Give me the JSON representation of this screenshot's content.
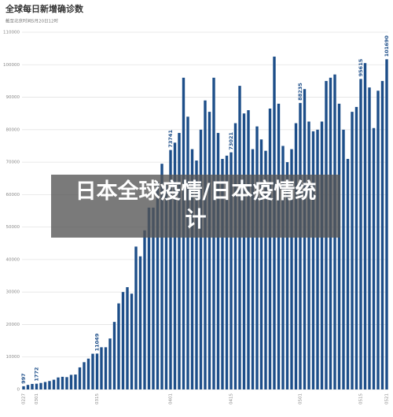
{
  "chart_data": {
    "type": "bar",
    "title": "全球每日新增确诊数",
    "subtitle": "截至北京时间5月20日12时",
    "categories": [
      "0227",
      null,
      null,
      "0301",
      null,
      null,
      null,
      null,
      null,
      null,
      null,
      null,
      null,
      null,
      null,
      null,
      null,
      "0315",
      null,
      null,
      null,
      null,
      null,
      null,
      null,
      null,
      null,
      null,
      null,
      null,
      null,
      null,
      null,
      null,
      "0401",
      null,
      null,
      null,
      null,
      null,
      null,
      null,
      null,
      null,
      null,
      null,
      null,
      null,
      "0415",
      null,
      null,
      null,
      null,
      null,
      null,
      null,
      null,
      null,
      null,
      null,
      null,
      null,
      null,
      null,
      "0501",
      null,
      null,
      null,
      null,
      null,
      null,
      null,
      null,
      null,
      null,
      null,
      null,
      null,
      "0515",
      null,
      null,
      null,
      null,
      null,
      "0521"
    ],
    "values": [
      997,
      1400,
      1700,
      1772,
      2000,
      2300,
      2600,
      3000,
      3700,
      3900,
      3800,
      4500,
      4600,
      6800,
      8400,
      9500,
      11000,
      11049,
      13000,
      13000,
      15700,
      20800,
      26500,
      30000,
      31500,
      29500,
      44000,
      41000,
      49000,
      56000,
      56000,
      64000,
      69500,
      63000,
      73741,
      76000,
      79000,
      96000,
      84000,
      74000,
      70500,
      80000,
      89000,
      85500,
      96000,
      79000,
      71000,
      72000,
      73021,
      82000,
      93500,
      85000,
      86000,
      74000,
      81000,
      77000,
      73500,
      86500,
      102500,
      88000,
      75000,
      70000,
      74000,
      82000,
      88235,
      92500,
      82500,
      79500,
      80000,
      82500,
      95000,
      96000,
      97000,
      88000,
      80000,
      71000,
      85500,
      87000,
      95615,
      100500,
      93000,
      80500,
      92000,
      95000,
      101690
    ],
    "labeled": [
      0,
      3,
      17,
      34,
      48,
      64,
      78,
      84
    ],
    "color": "#1d4e89",
    "ylim": [
      0,
      110000
    ],
    "yticks": [
      0,
      10000,
      20000,
      30000,
      40000,
      50000,
      60000,
      70000,
      80000,
      90000,
      100000,
      110000
    ],
    "grid": true
  },
  "overlay": {
    "text": "日本全球疫情/日本疫情统计"
  }
}
